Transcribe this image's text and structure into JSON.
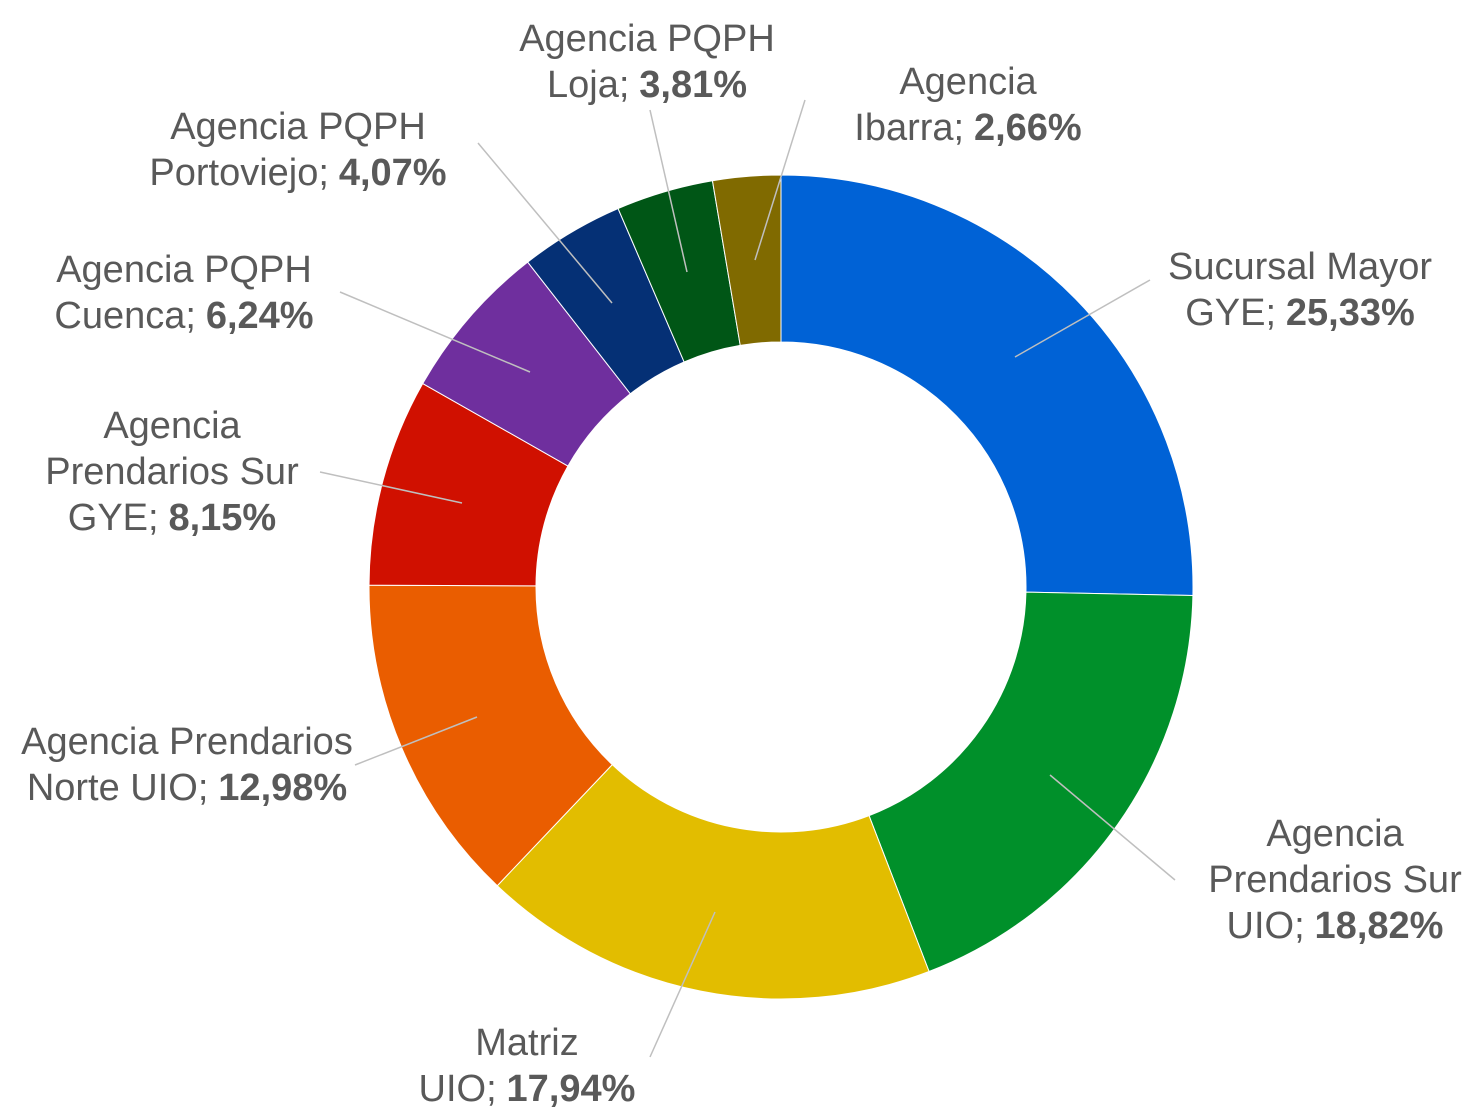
{
  "chart_data": {
    "type": "donut",
    "categories": [
      "Sucursal Mayor GYE;",
      "Agencia Prendarios Sur UIO;",
      "Matriz UIO;",
      "Agencia Prendarios Norte UIO;",
      "Agencia Prendarios Sur GYE;",
      "Agencia PQPH Cuenca;",
      "Agencia PQPH Portoviejo;",
      "Agencia PQPH Loja;",
      "Agencia Ibarra;"
    ],
    "values": [
      25.33,
      18.82,
      17.94,
      12.98,
      8.15,
      6.24,
      4.07,
      3.81,
      2.66
    ],
    "value_labels": [
      "25,33%",
      "18,82%",
      "17,94%",
      "12,98%",
      "8,15%",
      "6,24%",
      "4,07%",
      "3,81%",
      "2,66%"
    ],
    "colors": [
      "#0062d6",
      "#00902a",
      "#e2bd00",
      "#ea5d00",
      "#d01000",
      "#6f2f9e",
      "#053075",
      "#005616",
      "#806a00"
    ]
  }
}
